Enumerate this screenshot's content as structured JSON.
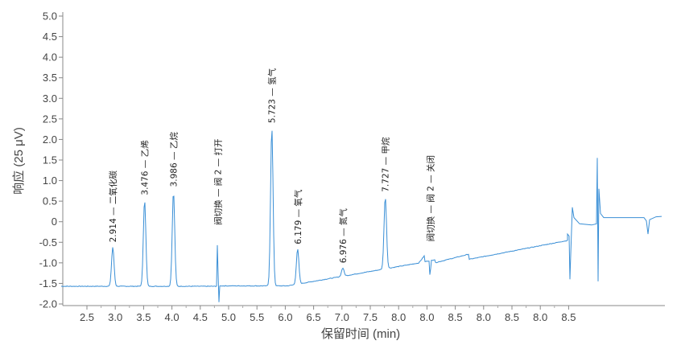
{
  "chart_data": {
    "type": "line",
    "xlabel": "保留时间 (min)",
    "ylabel": "响应 (25 μV)",
    "ylim": [
      -2.0,
      5.0
    ],
    "yticks": [
      "-2.0",
      "-1.5",
      "-1.0",
      "-0.5",
      "0",
      "0.5",
      "1.0",
      "1.5",
      "2.0",
      "2.5",
      "3.0",
      "3.5",
      "4.0",
      "4.5",
      "5.0"
    ],
    "xticks": [
      "2.5",
      "3.0",
      "3.5",
      "4.0",
      "4.5",
      "5.0",
      "5.5",
      "6.0",
      "6.5",
      "7.0",
      "7.5",
      "8.0",
      "8.0",
      "8.5",
      "8.0",
      "8.5",
      "8.0",
      "8.5"
    ],
    "grid": false,
    "line_color": "#3a8fd6",
    "annotations": [
      {
        "x": 2.914,
        "label": "2.914 — 二氧化碳"
      },
      {
        "x": 3.476,
        "label": "3.476 — 乙烯"
      },
      {
        "x": 3.986,
        "label": "3.986 — 乙烷"
      },
      {
        "x": 4.77,
        "label": "阀切换 — 阀 2 — 打开"
      },
      {
        "x": 5.723,
        "label": "5.723 — 氢气"
      },
      {
        "x": 6.179,
        "label": "6.179 — 氧气"
      },
      {
        "x": 6.976,
        "label": "6.976 — 氮气"
      },
      {
        "x": 7.727,
        "label": "7.727 — 甲烷"
      },
      {
        "x": 8.52,
        "label": "阀切换 — 阀 2 — 关闭"
      }
    ],
    "peaks": [
      {
        "x": 2.914,
        "height": 0.95
      },
      {
        "x": 3.476,
        "height": 2.1
      },
      {
        "x": 3.986,
        "height": 2.3
      },
      {
        "x": 5.723,
        "height": 3.85
      },
      {
        "x": 6.179,
        "height": 0.85
      },
      {
        "x": 6.976,
        "height": 0.2
      },
      {
        "x": 7.727,
        "height": 1.75
      }
    ]
  }
}
